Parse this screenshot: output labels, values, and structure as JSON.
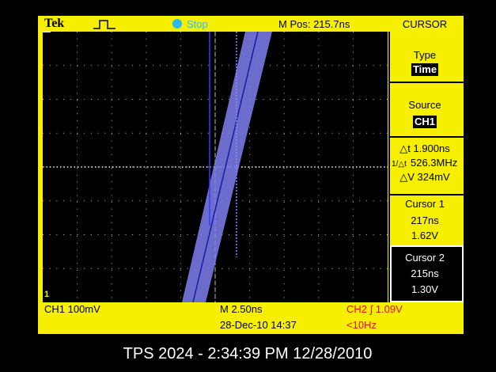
{
  "top_bar": {
    "brand": "Tek",
    "status": "Stop",
    "position": "M Pos: 215.7ns",
    "menu": "CURSOR"
  },
  "menu": {
    "type_label": "Type",
    "type_value": "Time",
    "source_label": "Source",
    "source_value": "CH1",
    "delta_t": "△t 1.900ns",
    "inverse_delta_t_symbol": "1/△t",
    "inverse_delta_t": "526.3MHz",
    "delta_v": "△V 324mV",
    "cursor1": {
      "label": "Cursor 1",
      "time": "217ns",
      "voltage": "1.62V"
    },
    "cursor2": {
      "label": "Cursor 2",
      "time": "215ns",
      "voltage": "1.30V"
    }
  },
  "screen": {
    "channel_marker": "1",
    "ch1_scale": "CH1 100mV",
    "timebase": "M 2.50ns",
    "trigger": "CH2 ∫ 1.09V",
    "date_time": "28-Dec-10 14:37",
    "frequency": "<10Hz"
  },
  "footer": "TPS 2024 - 2:34:39 PM 12/28/2010"
}
